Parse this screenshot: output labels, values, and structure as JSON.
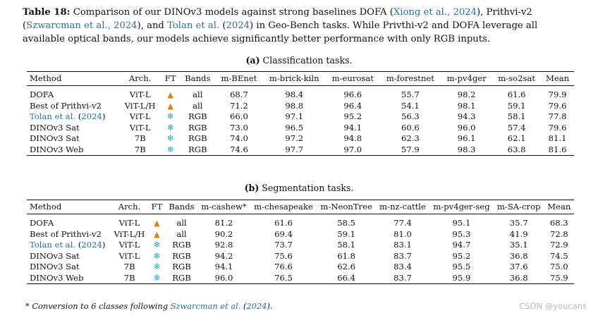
{
  "caption": {
    "label": "Table 18:",
    "part1": " Comparison of our DINOv3 models against strong baselines DOFA (",
    "cite_xiong": "Xiong et al., 2024",
    "part2": "), Prithvi-v2 (",
    "cite_szwarcman": "Szwarcman et al., 2024",
    "part3": "), and ",
    "cite_tolan": "Tolan et al.",
    "part4": " (",
    "cite_tolan_year": "2024",
    "part5": ") in Geo-Bench tasks. While Privthi-v2 and DOFA leverage all available optical bands, our models achieve significantly better performance with only RGB inputs."
  },
  "classification": {
    "subtitle_label": "(a)",
    "subtitle_text": " Classification tasks.",
    "headers": [
      "Method",
      "Arch.",
      "FT",
      "Bands",
      "m-BEnet",
      "m-brick-kiln",
      "m-eurosat",
      "m-forestnet",
      "m-pv4ger",
      "m-so2sat",
      "Mean"
    ],
    "rows": [
      {
        "method": "DOFA",
        "method_is_cite": false,
        "arch": "ViT-L",
        "ft": "fire",
        "bands": "all",
        "values": [
          "68.7",
          "98.4",
          "96.6",
          "55.7",
          "98.2",
          "61.6",
          "79.9"
        ],
        "bold": []
      },
      {
        "method": "Best of Prithvi-v2",
        "method_is_cite": false,
        "arch": "ViT-L/H",
        "ft": "fire",
        "bands": "all",
        "values": [
          "71.2",
          "98.8",
          "96.4",
          "54.1",
          "98.1",
          "59.1",
          "79.6"
        ],
        "bold": [
          1
        ]
      },
      {
        "method_cite": "Tolan et al.",
        "method_year": "2024",
        "method_is_cite": true,
        "arch": "ViT-L",
        "ft": "snow",
        "bands": "RGB",
        "values": [
          "66.0",
          "97.1",
          "95.2",
          "56.3",
          "94.3",
          "58.1",
          "77.8"
        ],
        "bold": []
      },
      {
        "method": "DINOv3 Sat",
        "method_is_cite": false,
        "arch": "ViT-L",
        "ft": "snow",
        "bands": "RGB",
        "values": [
          "73.0",
          "96.5",
          "94.1",
          "60.6",
          "96.0",
          "57.4",
          "79.6"
        ],
        "bold": []
      },
      {
        "method": "DINOv3 Sat",
        "method_is_cite": false,
        "arch": "7B",
        "ft": "snow",
        "bands": "RGB",
        "values": [
          "74.0",
          "97.2",
          "94.8",
          "62.3",
          "96.1",
          "62.1",
          "81.1"
        ],
        "bold": [
          3
        ]
      },
      {
        "method": "DINOv3 Web",
        "method_is_cite": false,
        "arch": "7B",
        "ft": "snow",
        "bands": "RGB",
        "values": [
          "74.6",
          "97.7",
          "97.0",
          "57.9",
          "98.3",
          "63.8",
          "81.6"
        ],
        "bold": [
          0,
          2,
          4,
          5,
          6
        ]
      }
    ]
  },
  "segmentation": {
    "subtitle_label": "(b)",
    "subtitle_text": " Segmentation tasks.",
    "headers": [
      "Method",
      "Arch.",
      "FT",
      "Bands",
      "m-cashew*",
      "m-chesapeake",
      "m-NeonTree",
      "m-nz-cattle",
      "m-pv4ger-seg",
      "m-SA-crop",
      "Mean"
    ],
    "rows": [
      {
        "method": "DOFA",
        "method_is_cite": false,
        "arch": "ViT-L",
        "ft": "fire",
        "bands": "all",
        "values": [
          "81.2",
          "61.6",
          "58.5",
          "77.4",
          "95.1",
          "35.7",
          "68.3"
        ],
        "bold": []
      },
      {
        "method": "Best of Prithvi-v2",
        "method_is_cite": false,
        "arch": "ViT-L/H",
        "ft": "fire",
        "bands": "all",
        "values": [
          "90.2",
          "69.4",
          "59.1",
          "81.0",
          "95.3",
          "41.9",
          "72.8"
        ],
        "bold": [
          5
        ]
      },
      {
        "method_cite": "Tolan et al.",
        "method_year": "2024",
        "method_is_cite": true,
        "arch": "ViT-L",
        "ft": "snow",
        "bands": "RGB",
        "values": [
          "92.8",
          "73.7",
          "58.1",
          "83.1",
          "94.7",
          "35.1",
          "72.9"
        ],
        "bold": []
      },
      {
        "method": "DINOv3 Sat",
        "method_is_cite": false,
        "arch": "ViT-L",
        "ft": "snow",
        "bands": "RGB",
        "values": [
          "94.2",
          "75.6",
          "61.8",
          "83.7",
          "95.2",
          "36.8",
          "74.5"
        ],
        "bold": [
          3
        ]
      },
      {
        "method": "DINOv3 Sat",
        "method_is_cite": false,
        "arch": "7B",
        "ft": "snow",
        "bands": "RGB",
        "values": [
          "94.1",
          "76.6",
          "62.6",
          "83.4",
          "95.5",
          "37.6",
          "75.0"
        ],
        "bold": [
          1
        ]
      },
      {
        "method": "DINOv3 Web",
        "method_is_cite": false,
        "arch": "7B",
        "ft": "snow",
        "bands": "RGB",
        "values": [
          "96.0",
          "76.5",
          "66.4",
          "83.7",
          "95.9",
          "36.8",
          "75.9"
        ],
        "bold": [
          0,
          2,
          3,
          4,
          6
        ]
      }
    ]
  },
  "footnote": {
    "marker": "*",
    "text": " Conversion to 6 classes following ",
    "cite": "Szwarcman et al.",
    "open": " (",
    "year": "2024",
    "close": ")."
  },
  "watermark": "CSDN @youcans",
  "icons": {
    "fire": "fire-icon",
    "snow": "snowflake-icon"
  },
  "colors": {
    "cite": "#2a6ea6",
    "fire": "#e57a12",
    "snow": "#2aa4e0"
  }
}
